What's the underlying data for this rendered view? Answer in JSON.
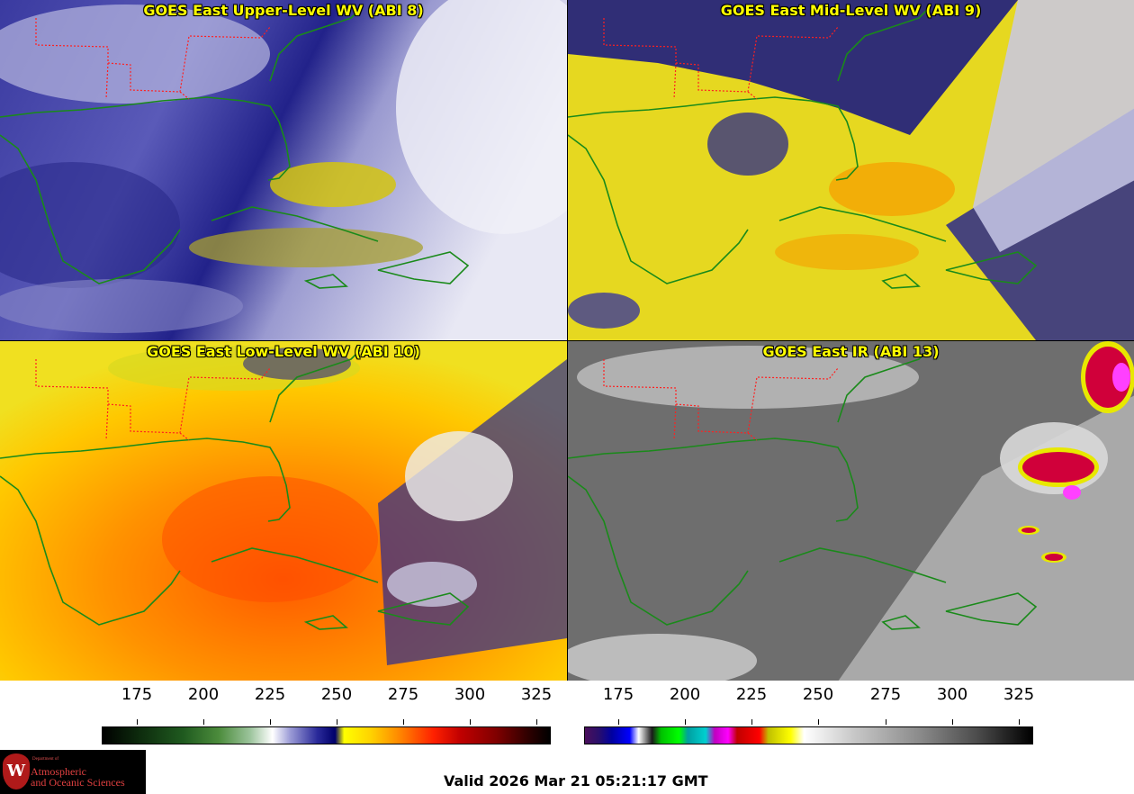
{
  "panels": [
    {
      "title": "GOES East Upper-Level WV (ABI 8)"
    },
    {
      "title": "GOES East Mid-Level WV (ABI 9)"
    },
    {
      "title": "GOES East Low-Level WV (ABI 10)"
    },
    {
      "title": "GOES East IR (ABI 13)"
    }
  ],
  "colorbars": [
    {
      "ticks": [
        "175",
        "200",
        "225",
        "250",
        "275",
        "300",
        "325"
      ]
    },
    {
      "ticks": [
        "175",
        "200",
        "225",
        "250",
        "275",
        "300",
        "325"
      ]
    }
  ],
  "logo": {
    "dept": "Department of",
    "line1": "Atmospheric",
    "line2": "and Oceanic Sciences",
    "seal": "W"
  },
  "valid_time": "Valid 2026 Mar 21 05:21:17 GMT",
  "colors": {
    "title_text": "#ffff00",
    "coastline": "#1a8a1a",
    "state_borders": "#ff2020"
  }
}
